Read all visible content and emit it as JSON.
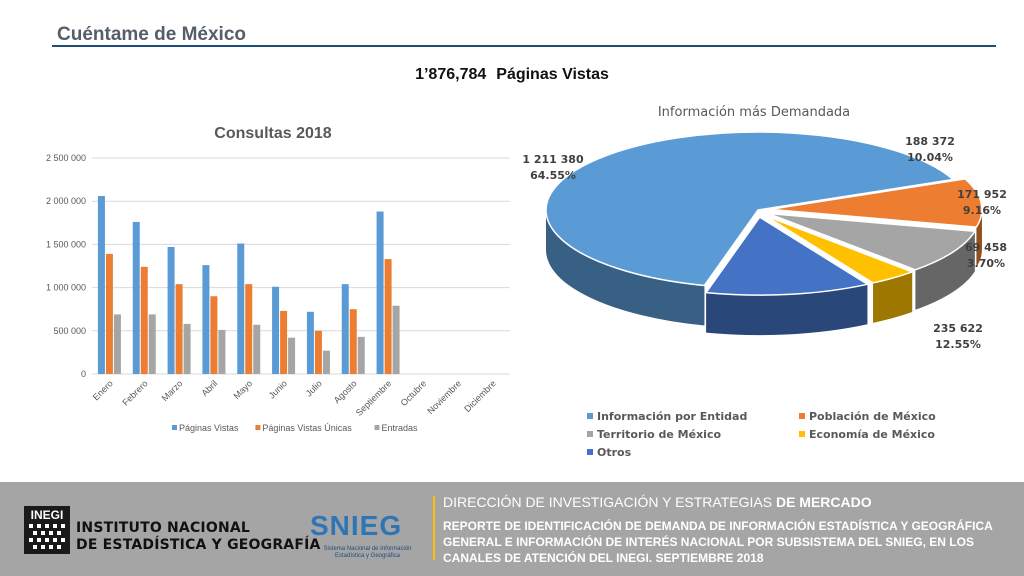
{
  "header": {
    "title": "Cuéntame de México",
    "total_value": "1’876,784",
    "total_label": "Páginas Vistas"
  },
  "chart_data": [
    {
      "type": "bar",
      "title": "Consultas 2018",
      "categories": [
        "Enero",
        "Febrero",
        "Marzo",
        "Abril",
        "Mayo",
        "Junio",
        "Julio",
        "Agosto",
        "Septiembre",
        "Octubre",
        "Noviembre",
        "Diciembre"
      ],
      "series": [
        {
          "name": "Páginas Vistas",
          "color": "#5b9bd5",
          "values": [
            2060000,
            1760000,
            1470000,
            1260000,
            1510000,
            1010000,
            720000,
            1040000,
            1880000,
            null,
            null,
            null
          ]
        },
        {
          "name": "Páginas Vistas Únicas",
          "color": "#ed7d31",
          "values": [
            1390000,
            1240000,
            1040000,
            900000,
            1040000,
            730000,
            500000,
            750000,
            1330000,
            null,
            null,
            null
          ]
        },
        {
          "name": "Entradas",
          "color": "#a5a5a5",
          "values": [
            690000,
            690000,
            580000,
            510000,
            570000,
            420000,
            270000,
            430000,
            790000,
            null,
            null,
            null
          ]
        }
      ],
      "ylim": [
        0,
        2500000
      ],
      "yticks": [
        0,
        500000,
        1000000,
        1500000,
        2000000,
        2500000
      ],
      "ytick_labels": [
        "0",
        "500 000",
        "1 000 000",
        "1 500 000",
        "2 000 000",
        "2 500 000"
      ],
      "grid": true,
      "legend_position": "bottom"
    },
    {
      "type": "pie",
      "title": "Información más Demandada",
      "slices": [
        {
          "name": "Información por Entidad",
          "value": 1211380,
          "value_label": "1 211 380",
          "percent_label": "64.55%",
          "color": "#5b9bd5"
        },
        {
          "name": "Población de México",
          "value": 188372,
          "value_label": "188 372",
          "percent_label": "10.04%",
          "color": "#ed7d31"
        },
        {
          "name": "Territorio de México",
          "value": 171952,
          "value_label": "171 952",
          "percent_label": "9.16%",
          "color": "#a5a5a5"
        },
        {
          "name": "Economía de México",
          "value": 69458,
          "value_label": "69 458",
          "percent_label": "3.70%",
          "color": "#ffc000"
        },
        {
          "name": "Otros",
          "value": 235622,
          "value_label": "235 622",
          "percent_label": "12.55%",
          "color": "#4472c4"
        }
      ],
      "legend_position": "bottom"
    }
  ],
  "footer": {
    "logo_text": "INEGI",
    "institute_line1": "INSTITUTO NACIONAL",
    "institute_line2": "DE ESTADÍSTICA Y GEOGRAFÍA",
    "snieg": "SNIEG",
    "snieg_subtitle": "Sistema Nacional de Información Estadística y Geográfica",
    "direction_part1": "DIRECCIÓN DE INVESTIGACIÓN Y ESTRATEGIAS",
    "direction_part2": "DE MERCADO",
    "report": "REPORTE DE IDENTIFICACIÓN DE DEMANDA DE INFORMACIÓN ESTADÍSTICA Y GEOGRÁFICA GENERAL E INFORMACIÓN DE INTERÉS NACIONAL POR SUBSISTEMA DEL SNIEG, EN LOS CANALES DE ATENCIÓN DEL INEGI. SEPTIEMBRE 2018"
  }
}
